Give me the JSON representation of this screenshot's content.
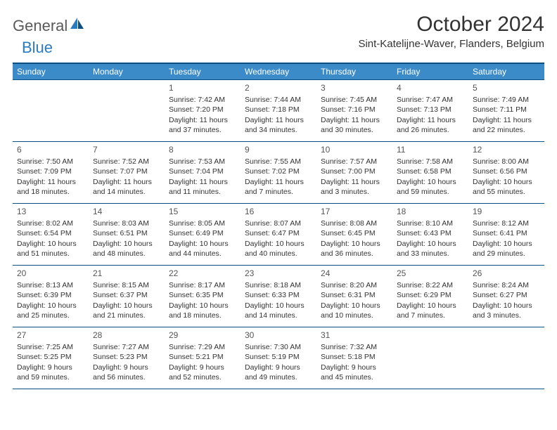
{
  "logo": {
    "part1": "General",
    "part2": "Blue"
  },
  "title": "October 2024",
  "location": "Sint-Katelijne-Waver, Flanders, Belgium",
  "colors": {
    "header_bg": "#3b8bc9",
    "header_border": "#0b4e82",
    "text": "#333333",
    "logo_gray": "#5a5a5a",
    "logo_blue": "#2b7bbf",
    "white": "#ffffff"
  },
  "daysOfWeek": [
    "Sunday",
    "Monday",
    "Tuesday",
    "Wednesday",
    "Thursday",
    "Friday",
    "Saturday"
  ],
  "weeks": [
    [
      null,
      null,
      {
        "n": "1",
        "sr": "Sunrise: 7:42 AM",
        "ss": "Sunset: 7:20 PM",
        "dl": "Daylight: 11 hours and 37 minutes."
      },
      {
        "n": "2",
        "sr": "Sunrise: 7:44 AM",
        "ss": "Sunset: 7:18 PM",
        "dl": "Daylight: 11 hours and 34 minutes."
      },
      {
        "n": "3",
        "sr": "Sunrise: 7:45 AM",
        "ss": "Sunset: 7:16 PM",
        "dl": "Daylight: 11 hours and 30 minutes."
      },
      {
        "n": "4",
        "sr": "Sunrise: 7:47 AM",
        "ss": "Sunset: 7:13 PM",
        "dl": "Daylight: 11 hours and 26 minutes."
      },
      {
        "n": "5",
        "sr": "Sunrise: 7:49 AM",
        "ss": "Sunset: 7:11 PM",
        "dl": "Daylight: 11 hours and 22 minutes."
      }
    ],
    [
      {
        "n": "6",
        "sr": "Sunrise: 7:50 AM",
        "ss": "Sunset: 7:09 PM",
        "dl": "Daylight: 11 hours and 18 minutes."
      },
      {
        "n": "7",
        "sr": "Sunrise: 7:52 AM",
        "ss": "Sunset: 7:07 PM",
        "dl": "Daylight: 11 hours and 14 minutes."
      },
      {
        "n": "8",
        "sr": "Sunrise: 7:53 AM",
        "ss": "Sunset: 7:04 PM",
        "dl": "Daylight: 11 hours and 11 minutes."
      },
      {
        "n": "9",
        "sr": "Sunrise: 7:55 AM",
        "ss": "Sunset: 7:02 PM",
        "dl": "Daylight: 11 hours and 7 minutes."
      },
      {
        "n": "10",
        "sr": "Sunrise: 7:57 AM",
        "ss": "Sunset: 7:00 PM",
        "dl": "Daylight: 11 hours and 3 minutes."
      },
      {
        "n": "11",
        "sr": "Sunrise: 7:58 AM",
        "ss": "Sunset: 6:58 PM",
        "dl": "Daylight: 10 hours and 59 minutes."
      },
      {
        "n": "12",
        "sr": "Sunrise: 8:00 AM",
        "ss": "Sunset: 6:56 PM",
        "dl": "Daylight: 10 hours and 55 minutes."
      }
    ],
    [
      {
        "n": "13",
        "sr": "Sunrise: 8:02 AM",
        "ss": "Sunset: 6:54 PM",
        "dl": "Daylight: 10 hours and 51 minutes."
      },
      {
        "n": "14",
        "sr": "Sunrise: 8:03 AM",
        "ss": "Sunset: 6:51 PM",
        "dl": "Daylight: 10 hours and 48 minutes."
      },
      {
        "n": "15",
        "sr": "Sunrise: 8:05 AM",
        "ss": "Sunset: 6:49 PM",
        "dl": "Daylight: 10 hours and 44 minutes."
      },
      {
        "n": "16",
        "sr": "Sunrise: 8:07 AM",
        "ss": "Sunset: 6:47 PM",
        "dl": "Daylight: 10 hours and 40 minutes."
      },
      {
        "n": "17",
        "sr": "Sunrise: 8:08 AM",
        "ss": "Sunset: 6:45 PM",
        "dl": "Daylight: 10 hours and 36 minutes."
      },
      {
        "n": "18",
        "sr": "Sunrise: 8:10 AM",
        "ss": "Sunset: 6:43 PM",
        "dl": "Daylight: 10 hours and 33 minutes."
      },
      {
        "n": "19",
        "sr": "Sunrise: 8:12 AM",
        "ss": "Sunset: 6:41 PM",
        "dl": "Daylight: 10 hours and 29 minutes."
      }
    ],
    [
      {
        "n": "20",
        "sr": "Sunrise: 8:13 AM",
        "ss": "Sunset: 6:39 PM",
        "dl": "Daylight: 10 hours and 25 minutes."
      },
      {
        "n": "21",
        "sr": "Sunrise: 8:15 AM",
        "ss": "Sunset: 6:37 PM",
        "dl": "Daylight: 10 hours and 21 minutes."
      },
      {
        "n": "22",
        "sr": "Sunrise: 8:17 AM",
        "ss": "Sunset: 6:35 PM",
        "dl": "Daylight: 10 hours and 18 minutes."
      },
      {
        "n": "23",
        "sr": "Sunrise: 8:18 AM",
        "ss": "Sunset: 6:33 PM",
        "dl": "Daylight: 10 hours and 14 minutes."
      },
      {
        "n": "24",
        "sr": "Sunrise: 8:20 AM",
        "ss": "Sunset: 6:31 PM",
        "dl": "Daylight: 10 hours and 10 minutes."
      },
      {
        "n": "25",
        "sr": "Sunrise: 8:22 AM",
        "ss": "Sunset: 6:29 PM",
        "dl": "Daylight: 10 hours and 7 minutes."
      },
      {
        "n": "26",
        "sr": "Sunrise: 8:24 AM",
        "ss": "Sunset: 6:27 PM",
        "dl": "Daylight: 10 hours and 3 minutes."
      }
    ],
    [
      {
        "n": "27",
        "sr": "Sunrise: 7:25 AM",
        "ss": "Sunset: 5:25 PM",
        "dl": "Daylight: 9 hours and 59 minutes."
      },
      {
        "n": "28",
        "sr": "Sunrise: 7:27 AM",
        "ss": "Sunset: 5:23 PM",
        "dl": "Daylight: 9 hours and 56 minutes."
      },
      {
        "n": "29",
        "sr": "Sunrise: 7:29 AM",
        "ss": "Sunset: 5:21 PM",
        "dl": "Daylight: 9 hours and 52 minutes."
      },
      {
        "n": "30",
        "sr": "Sunrise: 7:30 AM",
        "ss": "Sunset: 5:19 PM",
        "dl": "Daylight: 9 hours and 49 minutes."
      },
      {
        "n": "31",
        "sr": "Sunrise: 7:32 AM",
        "ss": "Sunset: 5:18 PM",
        "dl": "Daylight: 9 hours and 45 minutes."
      },
      null,
      null
    ]
  ]
}
